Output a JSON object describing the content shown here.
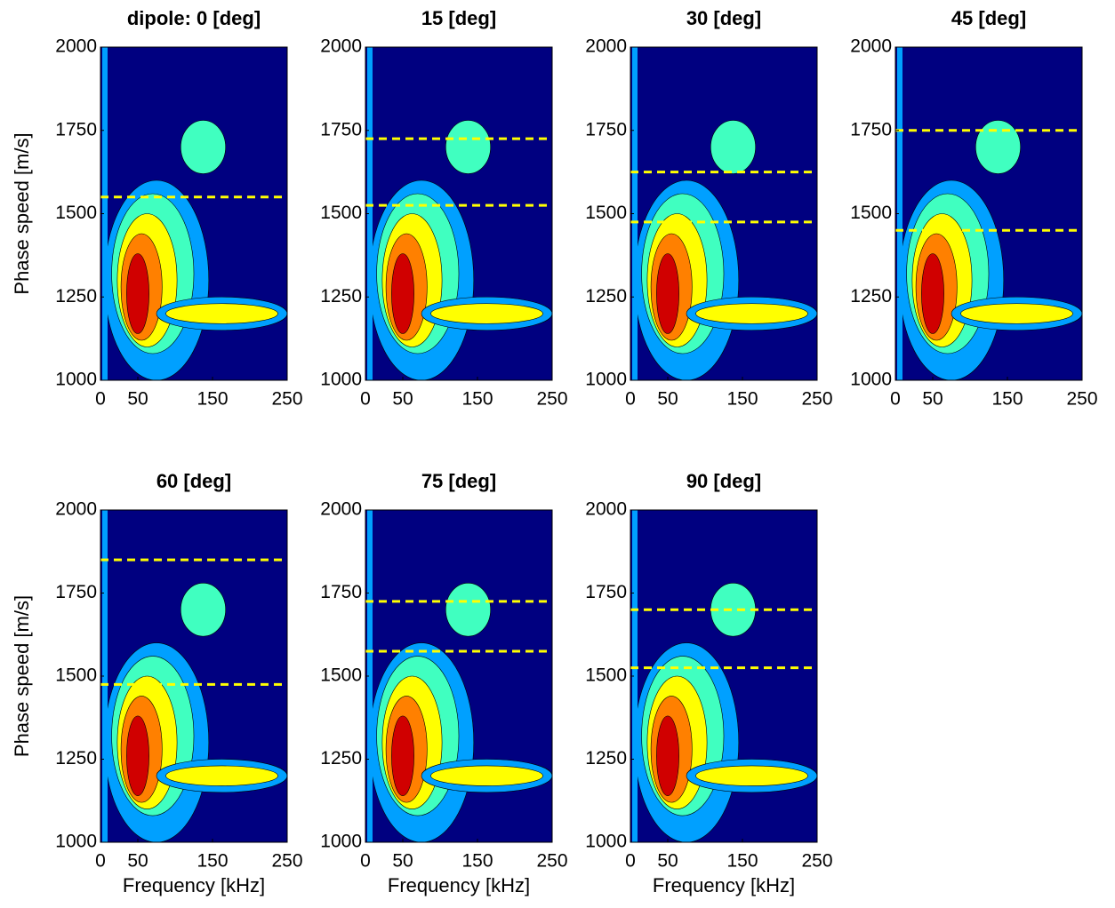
{
  "chart_data": [
    {
      "type": "contour",
      "title": "dipole: 0 [deg]",
      "ylabel": "Phase speed [m/s]",
      "xlim": [
        0,
        250
      ],
      "ylim": [
        1000,
        2000
      ],
      "xticks": [
        0,
        50,
        150,
        250
      ],
      "yticks": [
        1000,
        1250,
        1500,
        1750,
        2000
      ],
      "hlines": [
        1550
      ],
      "hline_color": "#ffff00"
    },
    {
      "type": "contour",
      "title": "15 [deg]",
      "xlim": [
        0,
        250
      ],
      "ylim": [
        1000,
        2000
      ],
      "xticks": [
        0,
        50,
        150,
        250
      ],
      "yticks": [
        1000,
        1250,
        1500,
        1750,
        2000
      ],
      "hlines": [
        1725,
        1525
      ],
      "hline_color": "#ffff00"
    },
    {
      "type": "contour",
      "title": "30 [deg]",
      "xlim": [
        0,
        250
      ],
      "ylim": [
        1000,
        2000
      ],
      "xticks": [
        0,
        50,
        150,
        250
      ],
      "yticks": [
        1000,
        1250,
        1500,
        1750,
        2000
      ],
      "hlines": [
        1625,
        1475
      ],
      "hline_color": "#ffff00"
    },
    {
      "type": "contour",
      "title": "45 [deg]",
      "xlim": [
        0,
        250
      ],
      "ylim": [
        1000,
        2000
      ],
      "xticks": [
        0,
        50,
        150,
        250
      ],
      "yticks": [
        1000,
        1250,
        1500,
        1750,
        2000
      ],
      "hlines": [
        1750,
        1450
      ],
      "hline_color": "#ffff00"
    },
    {
      "type": "contour",
      "title": "60 [deg]",
      "ylabel": "Phase speed [m/s]",
      "xlabel": "Frequency [kHz]",
      "xlim": [
        0,
        250
      ],
      "ylim": [
        1000,
        2000
      ],
      "xticks": [
        0,
        50,
        150,
        250
      ],
      "yticks": [
        1000,
        1250,
        1500,
        1750,
        2000
      ],
      "hlines": [
        1850,
        1475
      ],
      "hline_color": "#ffff00"
    },
    {
      "type": "contour",
      "title": "75 [deg]",
      "xlabel": "Frequency [kHz]",
      "xlim": [
        0,
        250
      ],
      "ylim": [
        1000,
        2000
      ],
      "xticks": [
        0,
        50,
        150,
        250
      ],
      "yticks": [
        1000,
        1250,
        1500,
        1750,
        2000
      ],
      "hlines": [
        1725,
        1575
      ],
      "hline_color": "#ffff00"
    },
    {
      "type": "contour",
      "title": "90 [deg]",
      "xlabel": "Frequency [kHz]",
      "xlim": [
        0,
        250
      ],
      "ylim": [
        1000,
        2000
      ],
      "xticks": [
        0,
        50,
        150,
        250
      ],
      "yticks": [
        1000,
        1250,
        1500,
        1750,
        2000
      ],
      "hlines": [
        1700,
        1525
      ],
      "hline_color": "#ffff00"
    }
  ]
}
